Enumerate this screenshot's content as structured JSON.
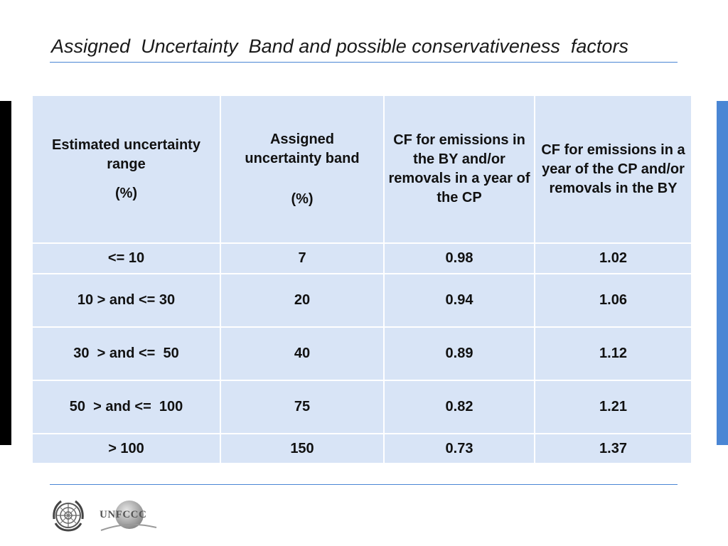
{
  "title": "Assigned  Uncertainty  Band and possible conservativeness  factors",
  "table": {
    "headers": [
      {
        "main": "Estimated uncertainty range",
        "unit": "(%)"
      },
      {
        "main": "Assigned uncertainty band",
        "unit": "(%)"
      },
      {
        "main": "CF for emissions in the BY and/or removals in a year of the  CP",
        "unit": ""
      },
      {
        "main": "CF for emissions in a year of the CP and/or removals in the BY",
        "unit": ""
      }
    ],
    "rows": [
      [
        "<= 10",
        "7",
        "0.98",
        "1.02"
      ],
      [
        "10 > and <= 30",
        "20",
        "0.94",
        "1.06"
      ],
      [
        "30  > and <=  50",
        "40",
        "0.89",
        "1.12"
      ],
      [
        "50  > and <=  100",
        "75",
        "0.82",
        "1.21"
      ],
      [
        "> 100",
        "150",
        "0.73",
        "1.37"
      ]
    ]
  },
  "logos": {
    "un": "un-emblem",
    "unfccc": "UNFCCC"
  },
  "colors": {
    "accent": "#4a86d4",
    "table_fill": "#d8e4f6",
    "left_bar": "#000000"
  }
}
